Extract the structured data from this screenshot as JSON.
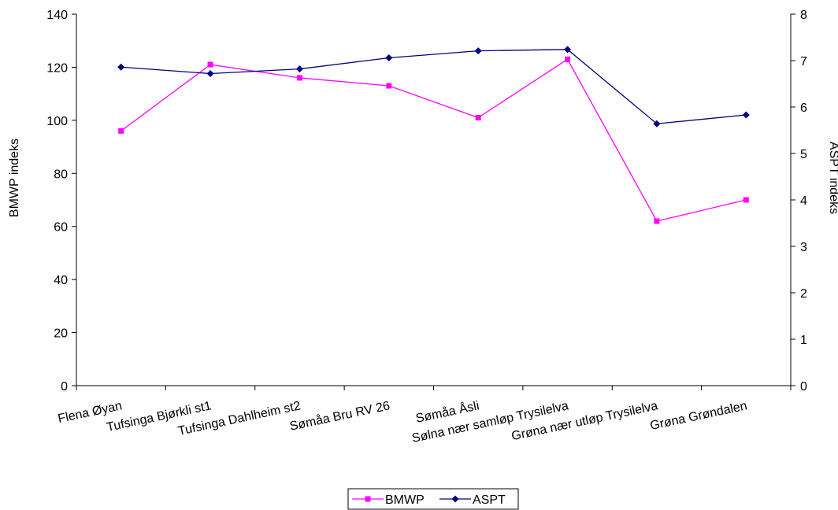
{
  "chart_data": {
    "type": "line",
    "categories": [
      "Flena Øyan",
      "Tufsinga Bjørkli st1",
      "Tufsinga Dahlheim st2",
      "Sømåa Bru RV 26",
      "Sømåa Åsli",
      "Sølna nær samløp Trysilelva",
      "Grøna nær utløp Trysilelva",
      "Grøna Grøndalen"
    ],
    "series": [
      {
        "name": "BMWP",
        "axis": "left",
        "color": "#ff00ff",
        "marker": "square",
        "values": [
          96,
          121,
          116,
          113,
          101,
          123,
          62,
          70
        ]
      },
      {
        "name": "ASPT",
        "axis": "right",
        "color": "#000080",
        "marker": "diamond",
        "values": [
          6.86,
          6.72,
          6.82,
          7.06,
          7.21,
          7.24,
          5.64,
          5.83
        ]
      }
    ],
    "ylabel": "BMWP indeks",
    "y2label": "ASPT indeks",
    "ylim": [
      0,
      140
    ],
    "y2lim": [
      0,
      8
    ],
    "yticks": [
      "0",
      "20",
      "40",
      "60",
      "80",
      "100",
      "120",
      "140"
    ],
    "y2ticks": [
      "0",
      "1",
      "2",
      "3",
      "4",
      "5",
      "6",
      "7",
      "8"
    ],
    "grid": false,
    "legend": "bottom-center"
  }
}
